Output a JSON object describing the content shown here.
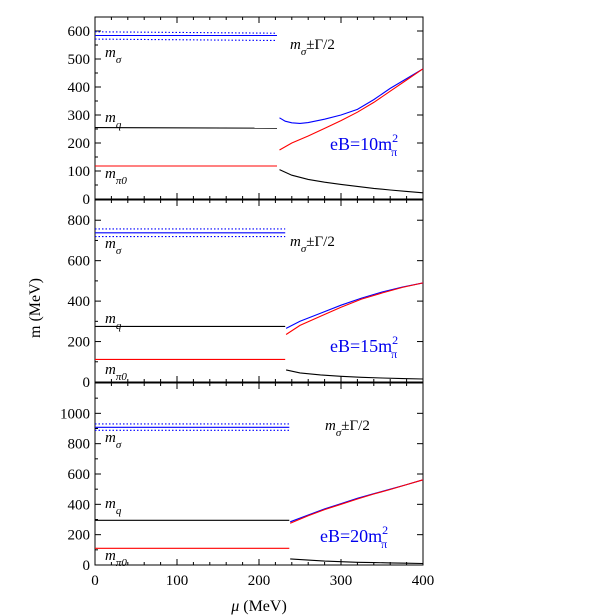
{
  "chart_data": [
    {
      "type": "line",
      "panel": "top",
      "eB_label": "eB=10m",
      "eB_sup": "2",
      "eB_sub": "π",
      "xlim": [
        0,
        400
      ],
      "ylim": [
        0,
        650
      ],
      "yticks": [
        "0",
        "100",
        "200",
        "300",
        "400",
        "500",
        "600"
      ],
      "ytick_values": [
        0,
        100,
        200,
        300,
        400,
        500,
        600
      ],
      "annotations": {
        "m_sigma": "σ",
        "m_q": "q",
        "m_pi0": "π0",
        "width_label": "±Γ/2"
      },
      "series": [
        {
          "color": "#0000ff",
          "style": "solid",
          "x": [
            0,
            222
          ],
          "y": [
            584,
            584
          ]
        },
        {
          "color": "#0000ff",
          "style": "dotted",
          "x": [
            0,
            222
          ],
          "y": [
            597,
            592
          ]
        },
        {
          "color": "#0000ff",
          "style": "dotted",
          "x": [
            0,
            222
          ],
          "y": [
            571,
            566
          ]
        },
        {
          "color": "#000000",
          "style": "solid",
          "x": [
            0,
            222
          ],
          "y": [
            255,
            253
          ]
        },
        {
          "color": "#ff0000",
          "style": "solid",
          "x": [
            0,
            222
          ],
          "y": [
            118,
            118
          ]
        },
        {
          "color": "#0000ff",
          "style": "solid",
          "x": [
            225,
            232,
            240,
            250,
            260,
            280,
            300,
            320,
            340,
            360,
            380,
            400
          ],
          "y": [
            290,
            278,
            272,
            270,
            273,
            285,
            300,
            320,
            355,
            395,
            430,
            465
          ]
        },
        {
          "color": "#ff0000",
          "style": "solid",
          "x": [
            225,
            240,
            260,
            280,
            300,
            320,
            340,
            360,
            380,
            400
          ],
          "y": [
            175,
            200,
            225,
            252,
            280,
            310,
            345,
            385,
            425,
            465
          ]
        },
        {
          "color": "#000000",
          "style": "solid",
          "x": [
            225,
            240,
            260,
            280,
            300,
            320,
            340,
            360,
            380,
            400
          ],
          "y": [
            105,
            85,
            70,
            60,
            52,
            45,
            38,
            32,
            27,
            22
          ]
        }
      ]
    },
    {
      "type": "line",
      "panel": "middle",
      "eB_label": "eB=15m",
      "eB_sup": "2",
      "eB_sub": "π",
      "xlim": [
        0,
        400
      ],
      "ylim": [
        0,
        900
      ],
      "yticks": [
        "0",
        "200",
        "400",
        "600",
        "800"
      ],
      "ytick_values": [
        0,
        200,
        400,
        600,
        800
      ],
      "annotations": {
        "m_sigma": "σ",
        "m_q": "q",
        "m_pi0": "π0",
        "width_label": "±Γ/2"
      },
      "series": [
        {
          "color": "#0000ff",
          "style": "solid",
          "x": [
            0,
            232
          ],
          "y": [
            738,
            738
          ]
        },
        {
          "color": "#0000ff",
          "style": "dotted",
          "x": [
            0,
            232
          ],
          "y": [
            757,
            757
          ]
        },
        {
          "color": "#0000ff",
          "style": "dotted",
          "x": [
            0,
            232
          ],
          "y": [
            719,
            719
          ]
        },
        {
          "color": "#000000",
          "style": "solid",
          "x": [
            0,
            232
          ],
          "y": [
            275,
            275
          ]
        },
        {
          "color": "#ff0000",
          "style": "solid",
          "x": [
            0,
            232
          ],
          "y": [
            112,
            112
          ]
        },
        {
          "color": "#0000ff",
          "style": "solid",
          "x": [
            233,
            250,
            275,
            300,
            325,
            350,
            375,
            400
          ],
          "y": [
            265,
            300,
            340,
            380,
            415,
            445,
            470,
            490
          ]
        },
        {
          "color": "#ff0000",
          "style": "solid",
          "x": [
            233,
            250,
            275,
            300,
            325,
            350,
            375,
            400
          ],
          "y": [
            235,
            280,
            325,
            370,
            410,
            440,
            468,
            490
          ]
        },
        {
          "color": "#000000",
          "style": "solid",
          "x": [
            233,
            250,
            275,
            300,
            325,
            350,
            375,
            400
          ],
          "y": [
            60,
            45,
            35,
            28,
            23,
            20,
            17,
            15
          ]
        }
      ]
    },
    {
      "type": "line",
      "panel": "bottom",
      "eB_label": "eB=20m",
      "eB_sup": "2",
      "eB_sub": "π",
      "xlim": [
        0,
        400
      ],
      "ylim": [
        0,
        1200
      ],
      "yticks": [
        "0",
        "200",
        "400",
        "600",
        "800",
        "1000"
      ],
      "ytick_values": [
        0,
        200,
        400,
        600,
        800,
        1000
      ],
      "xticks": [
        "0",
        "100",
        "200",
        "300",
        "400"
      ],
      "xtick_values": [
        0,
        100,
        200,
        300,
        400
      ],
      "xlabel_mu": "μ",
      "xlabel_unit": " (MeV)",
      "annotations": {
        "m_sigma": "σ",
        "m_q": "q",
        "m_pi0": "π0",
        "width_label": "±Γ/2"
      },
      "series": [
        {
          "color": "#0000ff",
          "style": "solid",
          "x": [
            0,
            237
          ],
          "y": [
            908,
            908
          ]
        },
        {
          "color": "#0000ff",
          "style": "dotted",
          "x": [
            0,
            237
          ],
          "y": [
            930,
            930
          ]
        },
        {
          "color": "#0000ff",
          "style": "dotted",
          "x": [
            0,
            237
          ],
          "y": [
            888,
            888
          ]
        },
        {
          "color": "#000000",
          "style": "solid",
          "x": [
            0,
            237
          ],
          "y": [
            295,
            295
          ]
        },
        {
          "color": "#ff0000",
          "style": "solid",
          "x": [
            0,
            237
          ],
          "y": [
            110,
            110
          ]
        },
        {
          "color": "#0000ff",
          "style": "solid",
          "x": [
            238,
            260,
            280,
            300,
            320,
            340,
            360,
            380,
            400
          ],
          "y": [
            285,
            330,
            370,
            405,
            440,
            470,
            500,
            530,
            562
          ]
        },
        {
          "color": "#ff0000",
          "style": "solid",
          "x": [
            238,
            260,
            280,
            300,
            320,
            340,
            360,
            380,
            400
          ],
          "y": [
            275,
            325,
            365,
            400,
            435,
            468,
            498,
            530,
            562
          ]
        },
        {
          "color": "#000000",
          "style": "solid",
          "x": [
            238,
            260,
            280,
            300,
            320,
            340,
            360,
            380,
            400
          ],
          "y": [
            40,
            32,
            26,
            22,
            18,
            16,
            14,
            12,
            10
          ]
        }
      ]
    }
  ],
  "ylabel": "m (MeV)",
  "m_symbol": "m"
}
